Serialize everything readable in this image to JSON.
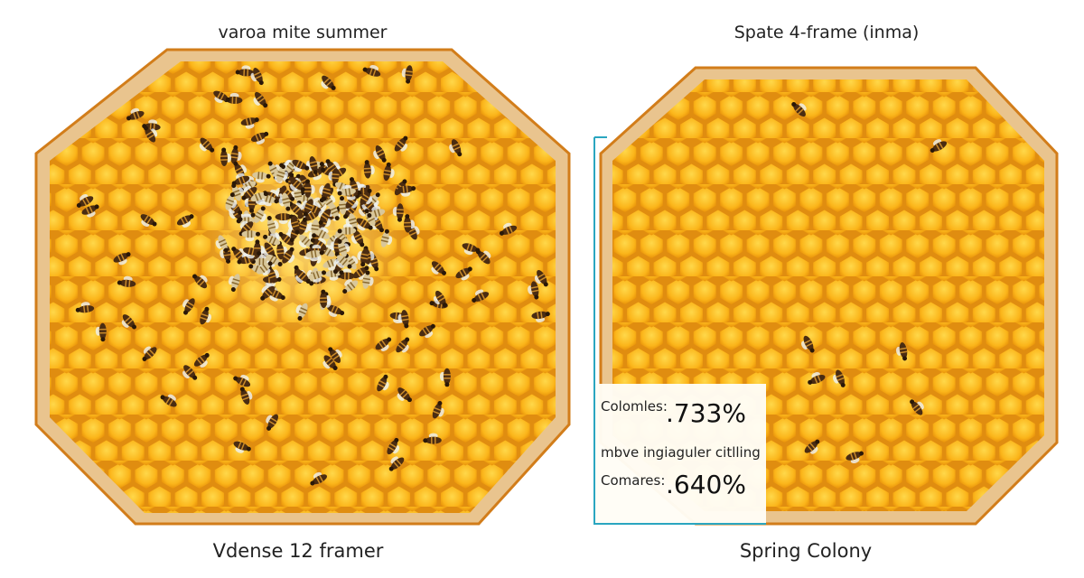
{
  "left_panel": {
    "title": "varoa mite summer",
    "caption": "Vdense 12 framer"
  },
  "right_panel": {
    "title": "Spate 4-frame (inma)",
    "caption": "Spring Colony"
  },
  "info_box": {
    "rows": [
      {
        "label": "Colomles:",
        "value": ".733%"
      },
      {
        "label": "mbve ingiaguler citlling"
      },
      {
        "label": "Comares:",
        "value": ".640%"
      }
    ]
  }
}
